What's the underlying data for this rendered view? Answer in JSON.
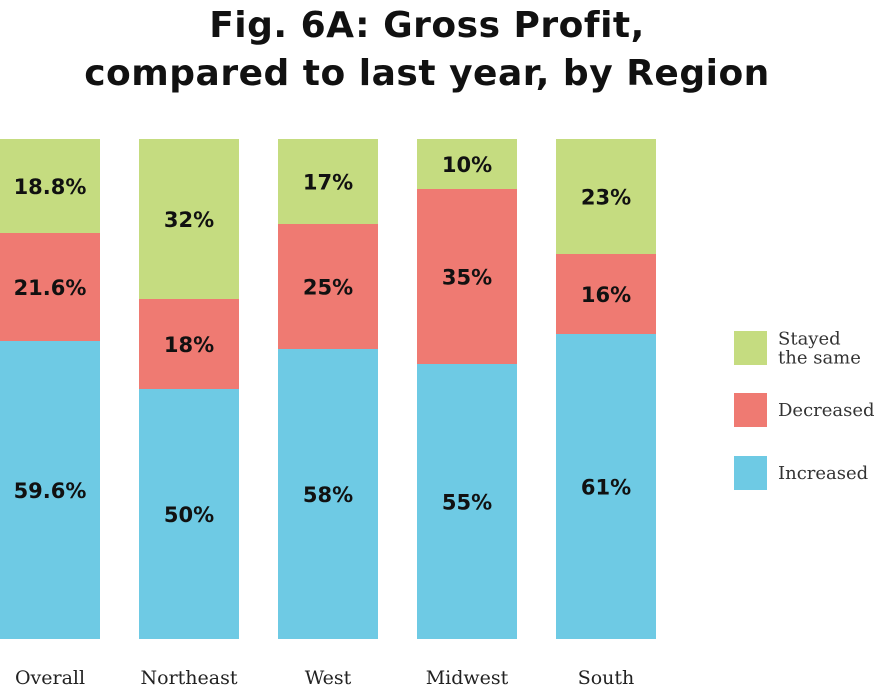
{
  "chart_data": {
    "type": "bar",
    "stacked": true,
    "title_lines": [
      "Fig. 6A: Gross Profit,",
      "compared to last year, by Region"
    ],
    "categories": [
      "Overall",
      "Northeast",
      "West",
      "Midwest",
      "South"
    ],
    "series": [
      {
        "name": "Increased",
        "values": [
          59.6,
          50,
          58,
          55,
          61
        ],
        "labels": [
          "59.6%",
          "50%",
          "58%",
          "55%",
          "61%"
        ],
        "color": "#6ecae4"
      },
      {
        "name": "Decreased",
        "values": [
          21.6,
          18,
          25,
          35,
          16
        ],
        "labels": [
          "21.6%",
          "18%",
          "25%",
          "35%",
          "16%"
        ],
        "color": "#ef7a72"
      },
      {
        "name": "Stayed the same",
        "values": [
          18.8,
          32,
          17,
          10,
          23
        ],
        "labels": [
          "18.8%",
          "32%",
          "17%",
          "10%",
          "23%"
        ],
        "color": "#c5dc80"
      }
    ],
    "legend": {
      "placement": "right",
      "items": [
        {
          "lines": [
            "Stayed",
            "the same"
          ],
          "color": "#c5dc80"
        },
        {
          "lines": [
            "Decreased"
          ],
          "color": "#ef7a72"
        },
        {
          "lines": [
            "Increased"
          ],
          "color": "#6ecae4"
        }
      ]
    },
    "ylim": [
      0,
      100
    ],
    "grid": false
  }
}
